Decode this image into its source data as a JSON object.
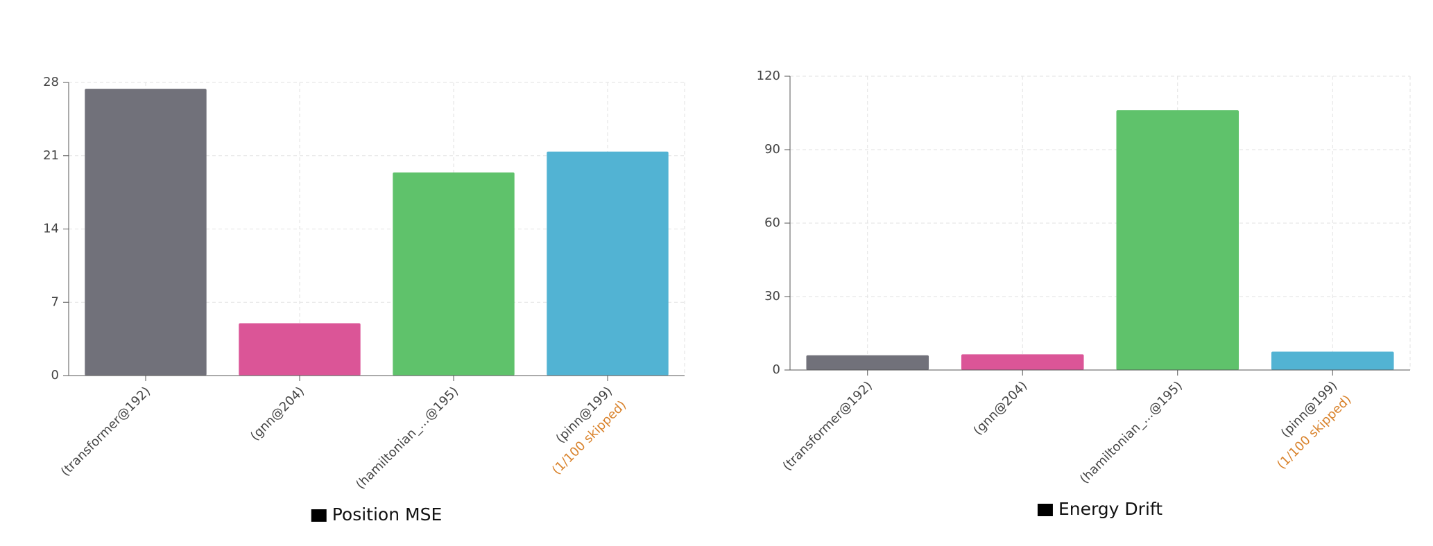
{
  "chart_data": [
    {
      "type": "bar",
      "categories": [
        "(transformer@192)",
        "(gnn@204)",
        "(hamiltonian_...@195)",
        "(pinn@199)"
      ],
      "category_notes": [
        null,
        null,
        null,
        "(1/100 skipped)"
      ],
      "series": [
        {
          "name": "Position MSE",
          "color": "#000000",
          "values": [
            27.4,
            5.0,
            19.4,
            21.4
          ]
        }
      ],
      "bar_colors": [
        "#71717a",
        "#db5597",
        "#5fc26b",
        "#52b3d3"
      ],
      "ylim": [
        0,
        28
      ],
      "yticks": [
        0,
        7,
        14,
        21,
        28
      ],
      "grid": true
    },
    {
      "type": "bar",
      "categories": [
        "(transformer@192)",
        "(gnn@204)",
        "(hamiltonian_...@195)",
        "(pinn@199)"
      ],
      "category_notes": [
        null,
        null,
        null,
        "(1/100 skipped)"
      ],
      "series": [
        {
          "name": "Energy Drift",
          "color": "#000000",
          "values": [
            6.0,
            6.4,
            106.1,
            7.5
          ]
        }
      ],
      "bar_colors": [
        "#71717a",
        "#db5597",
        "#5fc26b",
        "#52b3d3"
      ],
      "ylim": [
        0,
        120
      ],
      "yticks": [
        0,
        30,
        60,
        90,
        120
      ],
      "grid": true
    }
  ]
}
